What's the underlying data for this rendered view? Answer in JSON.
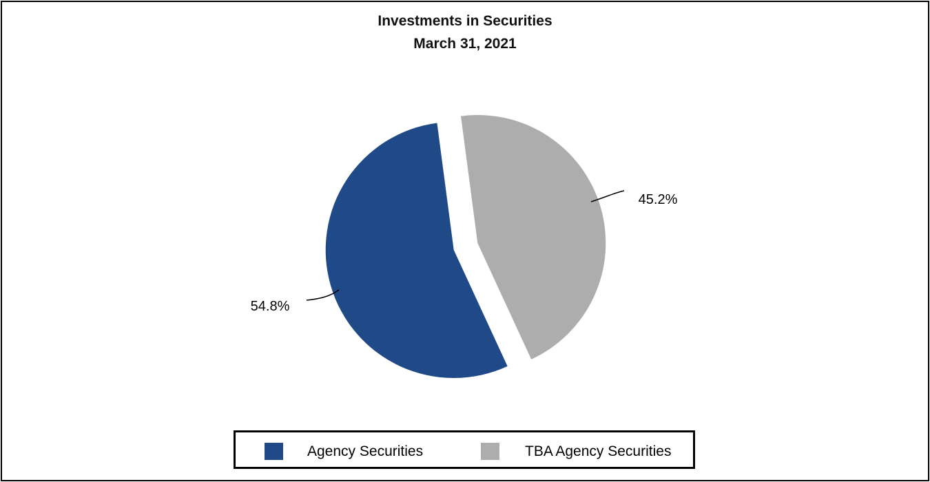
{
  "chart_data": {
    "type": "pie",
    "title": "Investments in Securities",
    "subtitle": "March 31, 2021",
    "slices": [
      {
        "name": "Agency Securities",
        "value": 54.8,
        "label": "54.8%",
        "color": "#1f4a87"
      },
      {
        "name": "TBA Agency Securities",
        "value": 45.2,
        "label": "45.2%",
        "color": "#adadad"
      }
    ],
    "legend_position": "bottom",
    "exploded": true
  }
}
